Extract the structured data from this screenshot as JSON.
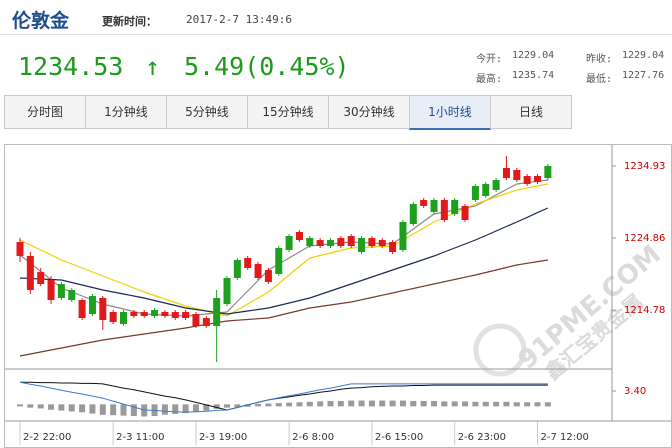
{
  "header": {
    "title": "伦敦金",
    "update_label": "更新时间：",
    "update_time": "2017-2-7 13:49:6"
  },
  "quote": {
    "price": "1234.53",
    "arrow": "↑",
    "change": "5.49(0.45%)",
    "stats": [
      {
        "label": "今开:",
        "value": "1229.04"
      },
      {
        "label": "昨收:",
        "value": "1229.04"
      },
      {
        "label": "最高:",
        "value": "1235.74"
      },
      {
        "label": "最低:",
        "value": "1227.76"
      }
    ]
  },
  "tabs": {
    "items": [
      "分时图",
      "1分钟线",
      "5分钟线",
      "15分钟线",
      "30分钟线",
      "1小时线",
      "日线"
    ],
    "active": 5
  },
  "watermark": {
    "text": "91PME.COM",
    "subtext": "鑫汇宝贵金属"
  },
  "chart_data": [
    {
      "type": "candlestick",
      "up_color": "#e0191b",
      "down_color": "#1ea01e",
      "categories": [
        "2-2 22:00",
        null,
        null,
        null,
        null,
        null,
        null,
        null,
        null,
        "2-3 11:00",
        null,
        null,
        null,
        null,
        null,
        null,
        null,
        "2-3 19:00",
        null,
        null,
        null,
        null,
        null,
        null,
        null,
        null,
        "2-6 8:00",
        null,
        null,
        null,
        null,
        null,
        null,
        null,
        "2-6 15:00",
        null,
        null,
        null,
        null,
        null,
        null,
        null,
        "2-6 23:00",
        null,
        null,
        null,
        null,
        null,
        null,
        null,
        "2-7 12:00",
        null
      ],
      "open": [
        1222.35,
        1217.59,
        1218.43,
        1216.19,
        1218.43,
        1217.59,
        1213.67,
        1216.75,
        1213.39,
        1213.11,
        1214.51,
        1213.95,
        1213.95,
        1214.79,
        1213.95,
        1213.67,
        1213.67,
        1212.55,
        1212.55,
        1216.47,
        1219.27,
        1221.79,
        1220.67,
        1219.27,
        1218.71,
        1223.46,
        1225.14,
        1224.58,
        1224.86,
        1223.74,
        1224.58,
        1223.74,
        1223.74,
        1224.86,
        1223.74,
        1223.74,
        1222.9,
        1227.1,
        1229.62,
        1229.34,
        1230.18,
        1227.38,
        1230.18,
        1227.38,
        1232.14,
        1232.42,
        1232.97,
        1233.25,
        1232.97,
        1232.42,
        1232.69,
        1234.93
      ],
      "high": [
        1224.86,
        1222.9,
        1220.67,
        1219.55,
        1218.71,
        1217.87,
        1216.47,
        1217.03,
        1216.75,
        1214.79,
        1214.79,
        1214.79,
        1214.79,
        1215.07,
        1214.79,
        1214.79,
        1214.79,
        1214.51,
        1213.95,
        1217.59,
        1219.55,
        1222.07,
        1222.35,
        1221.51,
        1220.67,
        1223.74,
        1225.42,
        1225.98,
        1225.14,
        1224.86,
        1224.86,
        1225.14,
        1225.42,
        1225.14,
        1225.14,
        1224.86,
        1224.58,
        1227.38,
        1229.9,
        1230.46,
        1230.46,
        1230.46,
        1230.46,
        1229.62,
        1232.42,
        1232.69,
        1233.25,
        1236.33,
        1234.65,
        1233.81,
        1233.81,
        1235.21
      ],
      "low": [
        1221.51,
        1217.03,
        1218.15,
        1215.63,
        1216.19,
        1215.91,
        1213.39,
        1213.95,
        1211.99,
        1212.83,
        1212.55,
        1213.67,
        1213.67,
        1213.67,
        1213.67,
        1213.39,
        1213.39,
        1212.27,
        1212.27,
        1207.52,
        1215.35,
        1218.99,
        1220.39,
        1218.99,
        1218.43,
        1219.55,
        1222.9,
        1224.3,
        1223.46,
        1223.46,
        1223.46,
        1223.46,
        1223.46,
        1222.62,
        1223.46,
        1223.46,
        1222.62,
        1222.9,
        1226.54,
        1229.06,
        1228.22,
        1227.1,
        1227.94,
        1227.1,
        1229.9,
        1230.46,
        1231.3,
        1232.97,
        1232.69,
        1232.14,
        1232.42,
        1232.97
      ],
      "close": [
        1224.3,
        1222.35,
        1220.11,
        1218.99,
        1216.47,
        1216.19,
        1216.19,
        1214.23,
        1216.47,
        1214.51,
        1212.83,
        1214.51,
        1214.51,
        1213.95,
        1214.51,
        1214.51,
        1214.51,
        1214.23,
        1213.67,
        1212.55,
        1215.63,
        1219.27,
        1222.07,
        1221.23,
        1220.39,
        1219.83,
        1223.18,
        1225.7,
        1223.74,
        1224.58,
        1223.74,
        1224.86,
        1225.14,
        1222.9,
        1224.86,
        1224.58,
        1224.3,
        1223.18,
        1226.82,
        1230.18,
        1228.5,
        1230.18,
        1228.22,
        1229.34,
        1230.18,
        1230.74,
        1231.58,
        1234.65,
        1234.37,
        1233.53,
        1233.53,
        1233.25
      ],
      "series": [
        {
          "color": "#8a8a8a",
          "values": [
            1222.49,
            1221.34,
            1220.18,
            1219.03,
            1217.87,
            1217.31,
            1216.75,
            1216.19,
            1215.63,
            1215.28,
            1214.93,
            1214.58,
            1214.23,
            1214.16,
            1214.09,
            1214.02,
            1213.95,
            1214.09,
            1214.23,
            1214.37,
            1214.51,
            1215.98,
            1217.45,
            1218.92,
            1220.39,
            1221.23,
            1222.07,
            1222.9,
            1223.74,
            1223.88,
            1224.02,
            1224.16,
            1224.3,
            1224.23,
            1224.16,
            1224.09,
            1224.02,
            1225.07,
            1226.12,
            1227.17,
            1228.22,
            1228.5,
            1228.78,
            1229.06,
            1229.34,
            1230.11,
            1230.88,
            1231.65,
            1232.42,
            1232.6,
            1232.79,
            1232.97
          ]
        },
        {
          "color": "#f0d000",
          "values": [
            1224.58,
            1223.88,
            1223.19,
            1222.49,
            1221.79,
            1221.23,
            1220.67,
            1220.11,
            1219.55,
            1218.99,
            1218.43,
            1217.87,
            1217.31,
            1216.82,
            1216.33,
            1215.84,
            1215.35,
            1215.0,
            1214.65,
            1214.3,
            1213.95,
            1214.79,
            1215.63,
            1216.47,
            1217.31,
            1218.5,
            1219.69,
            1220.88,
            1222.07,
            1222.42,
            1222.77,
            1223.11,
            1223.46,
            1223.53,
            1223.6,
            1223.67,
            1223.74,
            1224.58,
            1225.42,
            1226.26,
            1227.1,
            1227.73,
            1228.36,
            1228.99,
            1229.62,
            1230.11,
            1230.6,
            1231.09,
            1231.58,
            1231.86,
            1232.14,
            1232.42
          ]
        },
        {
          "color": "#1c2a5a",
          "values": [
            1219.27,
            1219.2,
            1219.13,
            1219.06,
            1218.99,
            1218.64,
            1218.29,
            1217.94,
            1217.59,
            1217.31,
            1217.03,
            1216.75,
            1216.47,
            1216.12,
            1215.77,
            1215.42,
            1215.07,
            1214.86,
            1214.65,
            1214.44,
            1214.23,
            1214.44,
            1214.65,
            1214.86,
            1215.07,
            1215.42,
            1215.77,
            1216.12,
            1216.47,
            1216.96,
            1217.45,
            1217.94,
            1218.43,
            1218.92,
            1219.41,
            1219.9,
            1220.39,
            1220.88,
            1221.37,
            1221.86,
            1222.35,
            1222.91,
            1223.47,
            1224.02,
            1224.58,
            1225.21,
            1225.84,
            1226.47,
            1227.1,
            1227.75,
            1228.41,
            1229.06
          ]
        },
        {
          "color": "#7a3a2a",
          "values": [
            1208.36,
            1208.64,
            1208.92,
            1209.2,
            1209.48,
            1209.76,
            1210.04,
            1210.32,
            1210.6,
            1210.81,
            1211.02,
            1211.23,
            1211.44,
            1211.65,
            1211.86,
            1212.07,
            1212.28,
            1212.53,
            1212.77,
            1213.02,
            1213.26,
            1213.36,
            1213.47,
            1213.57,
            1213.67,
            1214.02,
            1214.37,
            1214.72,
            1215.07,
            1215.28,
            1215.49,
            1215.7,
            1215.91,
            1216.23,
            1216.54,
            1216.86,
            1217.17,
            1217.49,
            1217.8,
            1218.12,
            1218.43,
            1218.75,
            1219.06,
            1219.38,
            1219.69,
            1220.04,
            1220.39,
            1220.74,
            1221.09,
            1221.32,
            1221.56,
            1221.79
          ]
        }
      ],
      "ylim": [
        1206.68,
        1237.73
      ],
      "yticks": [
        1214.78,
        1224.86,
        1234.93
      ],
      "tick_color": "#cc0000"
    },
    {
      "type": "macd",
      "ylim": [
        -3,
        7.2
      ],
      "yticks": [
        {
          "value": 3.4,
          "label": "3.40"
        }
      ],
      "tick_color": "#cc0000",
      "bars": {
        "color": "#9a9a9a",
        "values": [
          0,
          -0.3,
          -0.5,
          -0.8,
          -1.0,
          -1.2,
          -1.4,
          -1.7,
          -2.0,
          -2.1,
          -2.2,
          -2.3,
          -2.4,
          -2.3,
          -2.0,
          -1.8,
          -1.6,
          -1.3,
          -1.0,
          -0.6,
          -0.3,
          -0.2,
          -0.1,
          0.1,
          0.2,
          0.3,
          0.4,
          0.5,
          0.6,
          0.7,
          0.8,
          0.8,
          0.9,
          0.9,
          0.9,
          0.9,
          0.9,
          0.9,
          0.8,
          0.8,
          0.8,
          0.7,
          0.7,
          0.7,
          0.6,
          0.6,
          0.6,
          0.6,
          0.5,
          0.5,
          0.5,
          0.5
        ]
      },
      "series": [
        {
          "color": "#111111",
          "values": [
            5.5,
            5.5,
            5.4,
            5.4,
            5.3,
            5.3,
            5.2,
            5.2,
            5.1,
            4.6,
            4.1,
            3.7,
            3.2,
            2.7,
            2.2,
            1.8,
            1.3,
            0.7,
            0.1,
            -0.5,
            -1.1,
            -0.5,
            0.1,
            0.7,
            1.3,
            1.7,
            2.0,
            2.4,
            2.7,
            3.1,
            3.4,
            3.8,
            4.1,
            4.2,
            4.4,
            4.5,
            4.6,
            4.6,
            4.7,
            4.7,
            4.8,
            4.8,
            4.8,
            4.8,
            4.8,
            4.8,
            4.8,
            4.8,
            4.8,
            4.8,
            4.8,
            4.8
          ]
        },
        {
          "color": "#3a7bd5",
          "values": [
            5.5,
            5.0,
            4.6,
            4.1,
            3.6,
            3.1,
            2.7,
            2.2,
            1.7,
            1.0,
            0.3,
            -0.4,
            -1.1,
            -1.2,
            -1.4,
            -1.5,
            -1.6,
            -1.5,
            -1.4,
            -1.2,
            -1.1,
            -0.5,
            0.1,
            0.7,
            1.3,
            1.8,
            2.3,
            2.7,
            3.2,
            3.7,
            4.1,
            4.6,
            5.1,
            5.1,
            5.1,
            5.1,
            5.1,
            5.1,
            5.1,
            5.1,
            5.1,
            5.1,
            5.1,
            5.1,
            5.1,
            5.1,
            5.1,
            5.1,
            5.1,
            5.1,
            5.1,
            5.1
          ]
        }
      ]
    }
  ]
}
